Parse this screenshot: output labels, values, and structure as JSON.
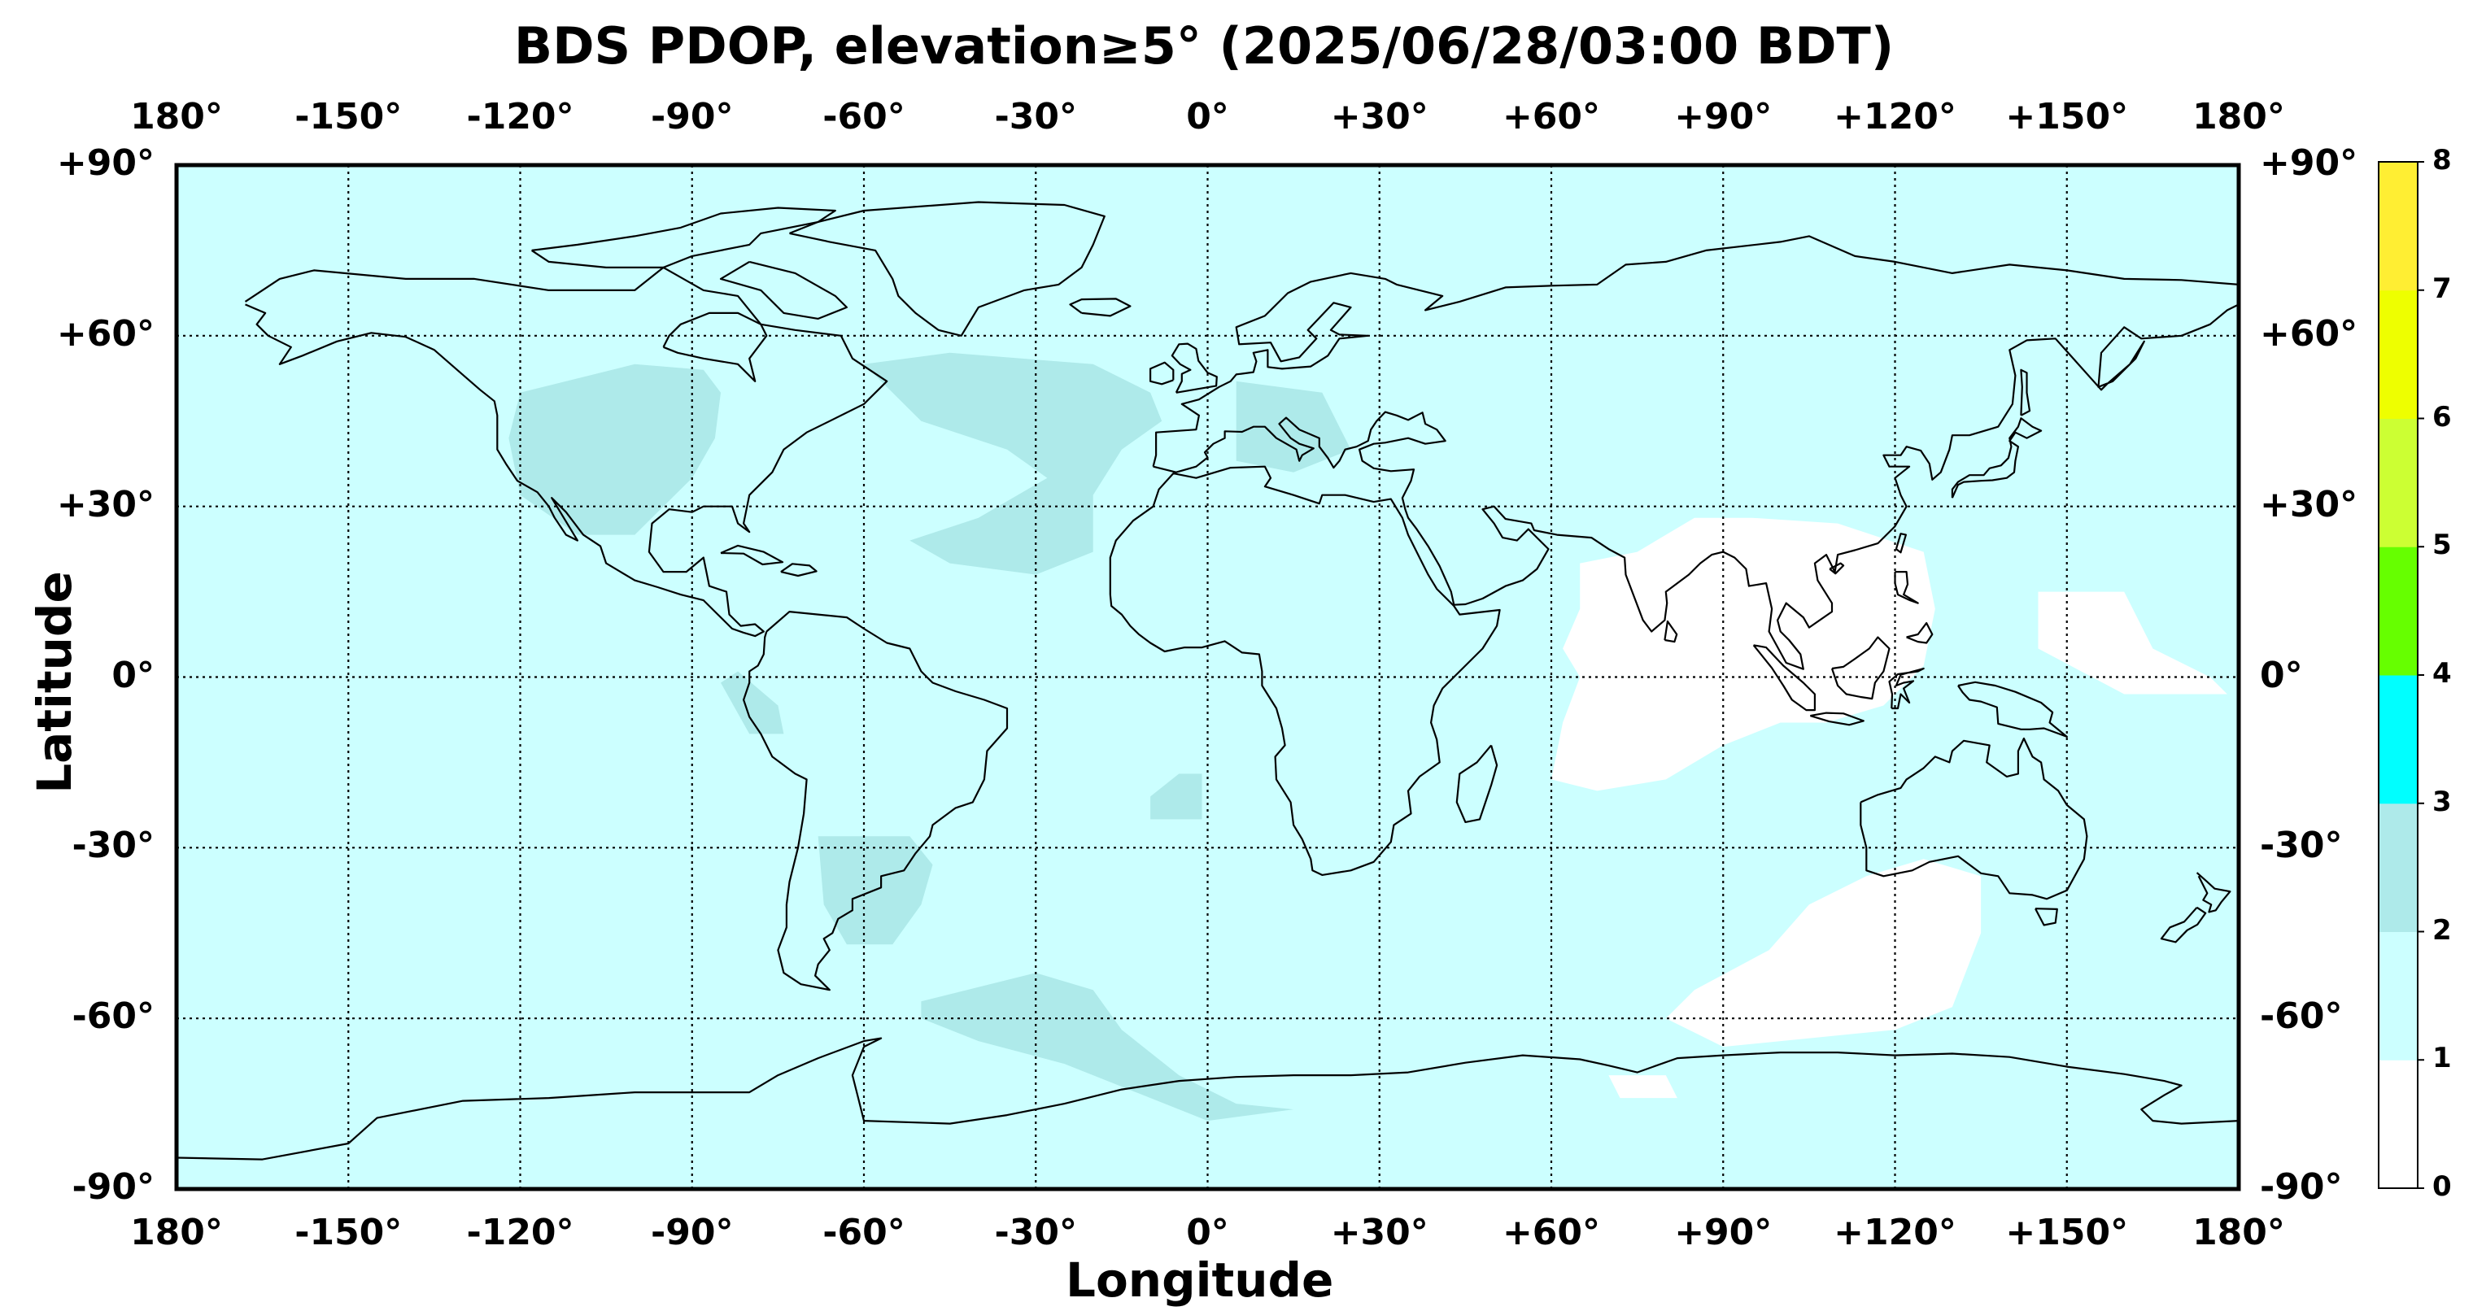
{
  "title": "BDS PDOP, elevation≥5° (2025/06/28/03:00 BDT)",
  "xlabel": "Longitude",
  "ylabel": "Latitude",
  "lon_ticks": [
    "180°",
    "-150°",
    "-120°",
    "-90°",
    "-60°",
    "-30°",
    "0°",
    "+30°",
    "+60°",
    "+90°",
    "+120°",
    "+150°",
    "180°"
  ],
  "lat_ticks": [
    "+90°",
    "+60°",
    "+30°",
    "0°",
    "-30°",
    "-60°",
    "-90°"
  ],
  "colorbar": {
    "ticks": [
      "0",
      "1",
      "2",
      "3",
      "4",
      "5",
      "6",
      "7",
      "8"
    ],
    "levels": [
      {
        "range": [
          0,
          1
        ],
        "color": "#ffffff"
      },
      {
        "range": [
          1,
          2
        ],
        "color": "#ccffff"
      },
      {
        "range": [
          2,
          3
        ],
        "color": "#aeeaea"
      },
      {
        "range": [
          3,
          4
        ],
        "color": "#00ffff"
      },
      {
        "range": [
          4,
          5
        ],
        "color": "#66ff00"
      },
      {
        "range": [
          5,
          6
        ],
        "color": "#ccff33"
      },
      {
        "range": [
          6,
          7
        ],
        "color": "#eeff00"
      },
      {
        "range": [
          7,
          8
        ],
        "color": "#ffee33"
      }
    ]
  },
  "chart_data": {
    "type": "heatmap",
    "projection": "equirectangular",
    "xlim": [
      -180,
      180
    ],
    "ylim": [
      -90,
      90
    ],
    "grid": true,
    "background_value_range": [
      1,
      2
    ],
    "regions": [
      {
        "name_ref": "north-america",
        "value_range": [
          2,
          3
        ],
        "polygon": [
          [
            -120,
            50
          ],
          [
            -100,
            55
          ],
          [
            -88,
            54
          ],
          [
            -85,
            50
          ],
          [
            -86,
            42
          ],
          [
            -90,
            35
          ],
          [
            -100,
            25
          ],
          [
            -110,
            25
          ],
          [
            -120,
            32
          ],
          [
            -122,
            42
          ]
        ]
      },
      {
        "name_ref": "north-atlantic",
        "value_range": [
          2,
          3
        ],
        "polygon": [
          [
            -60,
            55
          ],
          [
            -45,
            57
          ],
          [
            -20,
            55
          ],
          [
            -10,
            50
          ],
          [
            -8,
            45
          ],
          [
            -15,
            40
          ],
          [
            -20,
            32
          ],
          [
            -20,
            22
          ],
          [
            -30,
            18
          ],
          [
            -45,
            20
          ],
          [
            -52,
            24
          ],
          [
            -40,
            28
          ],
          [
            -28,
            35
          ],
          [
            -35,
            40
          ],
          [
            -50,
            45
          ]
        ]
      },
      {
        "name_ref": "europe",
        "value_range": [
          2,
          3
        ],
        "polygon": [
          [
            5,
            52
          ],
          [
            20,
            50
          ],
          [
            25,
            40
          ],
          [
            15,
            36
          ],
          [
            5,
            38
          ]
        ]
      },
      {
        "name_ref": "south-america",
        "value_range": [
          2,
          3
        ],
        "polygon": [
          [
            -68,
            -28
          ],
          [
            -52,
            -28
          ],
          [
            -48,
            -33
          ],
          [
            -50,
            -40
          ],
          [
            -55,
            -47
          ],
          [
            -63,
            -47
          ],
          [
            -67,
            -40
          ]
        ]
      },
      {
        "name_ref": "northern-south-america",
        "value_range": [
          2,
          3
        ],
        "polygon": [
          [
            -85,
            -1
          ],
          [
            -82,
            1
          ],
          [
            -75,
            -5
          ],
          [
            -74,
            -10
          ],
          [
            -80,
            -10
          ]
        ]
      },
      {
        "name_ref": "south-atlantic",
        "value_range": [
          2,
          3
        ],
        "polygon": [
          [
            -5,
            -17
          ],
          [
            -1,
            -17
          ],
          [
            -1,
            -25
          ],
          [
            -10,
            -25
          ],
          [
            -10,
            -21
          ]
        ]
      },
      {
        "name_ref": "southern-ocean",
        "value_range": [
          2,
          3
        ],
        "polygon": [
          [
            -50,
            -57
          ],
          [
            -30,
            -52
          ],
          [
            -20,
            -55
          ],
          [
            -15,
            -62
          ],
          [
            -5,
            -70
          ],
          [
            5,
            -75
          ],
          [
            15,
            -76
          ],
          [
            0,
            -78
          ],
          [
            -15,
            -72
          ],
          [
            -25,
            -68
          ],
          [
            -40,
            -64
          ],
          [
            -50,
            -60
          ]
        ]
      },
      {
        "name_ref": "indian-ocean-east-asia",
        "value_range": [
          0,
          1
        ],
        "polygon": [
          [
            65,
            20
          ],
          [
            75,
            22
          ],
          [
            85,
            28
          ],
          [
            95,
            28
          ],
          [
            110,
            27
          ],
          [
            125,
            22
          ],
          [
            127,
            12
          ],
          [
            125,
            2
          ],
          [
            118,
            -5
          ],
          [
            108,
            -8
          ],
          [
            100,
            -8
          ],
          [
            90,
            -12
          ],
          [
            80,
            -18
          ],
          [
            68,
            -20
          ],
          [
            60,
            -18
          ],
          [
            62,
            -8
          ],
          [
            65,
            0
          ],
          [
            62,
            5
          ],
          [
            65,
            12
          ]
        ]
      },
      {
        "name_ref": "western-pacific",
        "value_range": [
          0,
          1
        ],
        "polygon": [
          [
            145,
            15
          ],
          [
            160,
            15
          ],
          [
            165,
            5
          ],
          [
            175,
            0
          ],
          [
            178,
            -3
          ],
          [
            160,
            -3
          ],
          [
            145,
            5
          ]
        ]
      },
      {
        "name_ref": "southern-indian-ocean",
        "value_range": [
          0,
          1
        ],
        "polygon": [
          [
            98,
            -48
          ],
          [
            105,
            -40
          ],
          [
            115,
            -35
          ],
          [
            125,
            -32
          ],
          [
            135,
            -35
          ],
          [
            135,
            -45
          ],
          [
            130,
            -58
          ],
          [
            120,
            -62
          ],
          [
            90,
            -65
          ],
          [
            80,
            -60
          ],
          [
            85,
            -55
          ]
        ]
      },
      {
        "name_ref": "antarctic-coast",
        "value_range": [
          0,
          1
        ],
        "polygon": [
          [
            70,
            -70
          ],
          [
            80,
            -70
          ],
          [
            82,
            -74
          ],
          [
            72,
            -74
          ]
        ]
      }
    ]
  }
}
